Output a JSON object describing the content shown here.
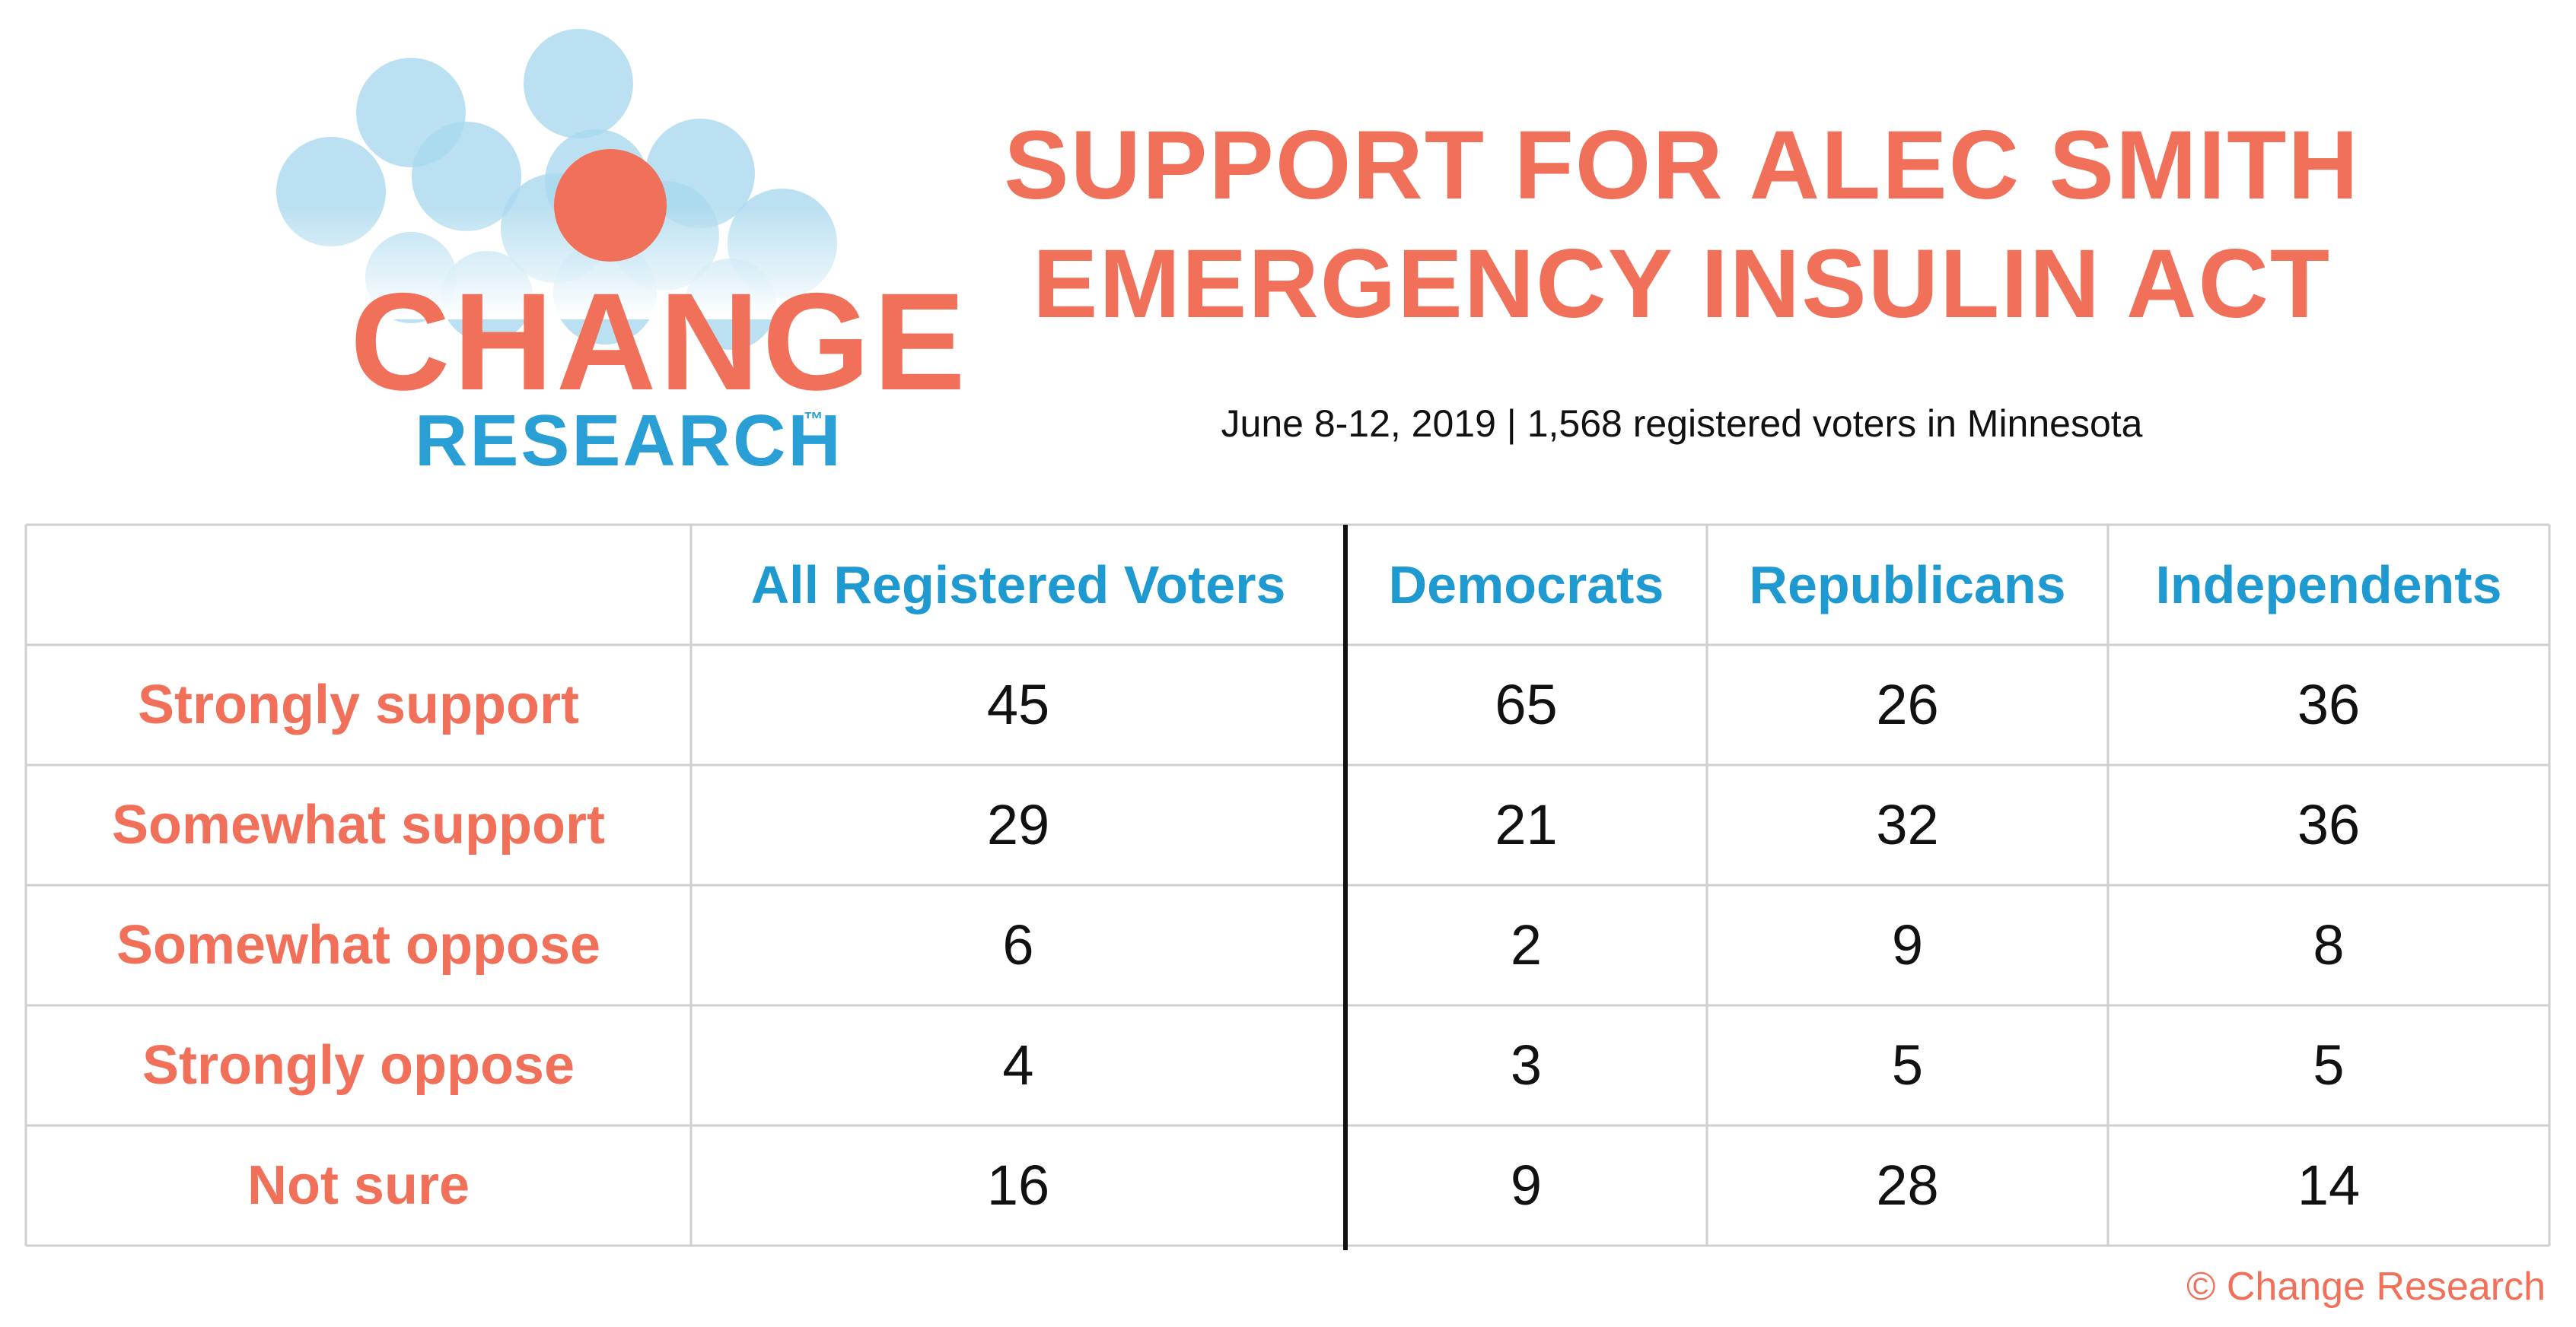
{
  "logo": {
    "word1": "CHANGE",
    "word2": "RESEARCH",
    "trademark": "™",
    "colors": {
      "orange": "#f0705a",
      "blue": "#2a9fd6",
      "bubble": "#a9d8ee"
    }
  },
  "title_line1": "SUPPORT FOR ALEC SMITH",
  "title_line2": "EMERGENCY INSULIN ACT",
  "subtitle": "June 8-12, 2019  | 1,568 registered voters in Minnesota",
  "footer": "© Change Research",
  "colors": {
    "accent_orange": "#f0705a",
    "accent_blue": "#1f9ad1",
    "grid": "#cfcfcf",
    "divider": "#111111"
  },
  "chart_data": {
    "type": "table",
    "columns": [
      "All Registered Voters",
      "Democrats",
      "Republicans",
      "Independents"
    ],
    "rows": [
      {
        "label": "Strongly support",
        "values": [
          45,
          65,
          26,
          36
        ]
      },
      {
        "label": "Somewhat support",
        "values": [
          29,
          21,
          32,
          36
        ]
      },
      {
        "label": "Somewhat oppose",
        "values": [
          6,
          2,
          9,
          8
        ]
      },
      {
        "label": "Strongly oppose",
        "values": [
          4,
          3,
          5,
          5
        ]
      },
      {
        "label": "Not sure",
        "values": [
          16,
          9,
          28,
          14
        ]
      }
    ]
  }
}
